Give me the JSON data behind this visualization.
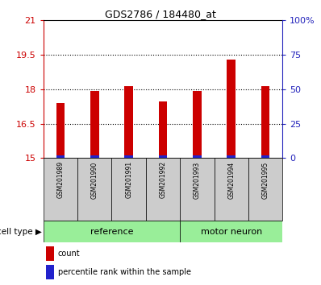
{
  "title": "GDS2786 / 184480_at",
  "categories": [
    "GSM201989",
    "GSM201990",
    "GSM201991",
    "GSM201992",
    "GSM201993",
    "GSM201994",
    "GSM201995"
  ],
  "red_values": [
    17.38,
    17.9,
    18.12,
    17.45,
    17.9,
    19.28,
    18.12
  ],
  "blue_values": [
    0.12,
    0.12,
    0.12,
    0.12,
    0.12,
    0.12,
    0.12
  ],
  "ylim_left": [
    15,
    21
  ],
  "ylim_right": [
    0,
    100
  ],
  "yticks_left": [
    15,
    16.5,
    18,
    19.5,
    21
  ],
  "yticks_right": [
    0,
    25,
    50,
    75,
    100
  ],
  "ytick_labels_left": [
    "15",
    "16.5",
    "18",
    "19.5",
    "21"
  ],
  "ytick_labels_right": [
    "0",
    "25",
    "50",
    "75",
    "100%"
  ],
  "group_boundary": 4,
  "cell_type_label": "cell type",
  "legend_count": "count",
  "legend_pct": "percentile rank within the sample",
  "bar_width": 0.25,
  "red_color": "#cc0000",
  "blue_color": "#2222cc",
  "background_color": "#ffffff",
  "gray_box_color": "#cccccc",
  "green_color": "#99ee99",
  "left_axis_color": "#cc0000",
  "right_axis_color": "#2222bb"
}
